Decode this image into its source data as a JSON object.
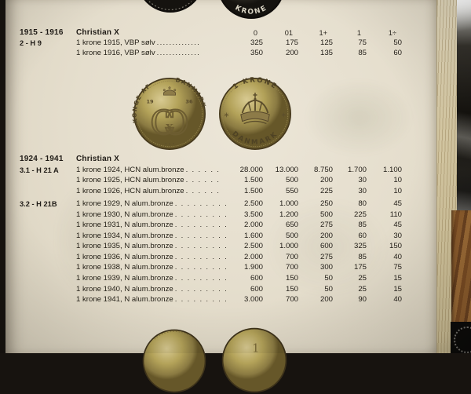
{
  "photo": {
    "background_color": "#17130f",
    "page_color": "#e5decd",
    "coin_gold": "#b3a259",
    "coin_silver": "#56524a",
    "wood_color": "#8d5d2d"
  },
  "page": {
    "sections": [
      {
        "years": "1915 - 1916",
        "ruler": "Christian X",
        "grade_headers": [
          "0",
          "01",
          "1+",
          "1",
          "1÷"
        ],
        "rows": [
          {
            "code": "2 - H 9",
            "label": "1 krone 1915, VBP sølv",
            "dots": "..............",
            "values": [
              "325",
              "175",
              "125",
              "75",
              "50"
            ]
          },
          {
            "code": "",
            "label": "1 krone 1916, VBP sølv",
            "dots": "..............",
            "values": [
              "350",
              "200",
              "135",
              "85",
              "60"
            ]
          }
        ]
      },
      {
        "years": "1924 - 1941",
        "ruler": "Christian X",
        "grade_headers": [],
        "rows": [
          {
            "code": "3.1 - H 21 A",
            "label": "1 krone 1924, HCN alum.bronze",
            "dots": ". . . . . .",
            "values": [
              "28.000",
              "13.000",
              "8.750",
              "1.700",
              "1.100"
            ]
          },
          {
            "code": "",
            "label": "1 krone 1925, HCN alum.bronze",
            "dots": ". . . . . .",
            "values": [
              "1.500",
              "500",
              "200",
              "30",
              "10"
            ]
          },
          {
            "code": "",
            "label": "1 krone 1926, HCN alum.bronze",
            "dots": ". . . . . .",
            "values": [
              "1.500",
              "550",
              "225",
              "30",
              "10"
            ]
          },
          {
            "code": "3.2 - H 21B",
            "label": "1 krone 1929, N alum.bronze",
            "dots": ". . . . . . . . .",
            "values": [
              "2.500",
              "1.000",
              "250",
              "80",
              "45"
            ]
          },
          {
            "code": "",
            "label": "1 krone 1930, N alum.bronze",
            "dots": ". . . . . . . . .",
            "values": [
              "3.500",
              "1.200",
              "500",
              "225",
              "110"
            ]
          },
          {
            "code": "",
            "label": "1 krone 1931, N alum.bronze",
            "dots": ". . . . . . . . .",
            "values": [
              "2.000",
              "650",
              "275",
              "85",
              "45"
            ]
          },
          {
            "code": "",
            "label": "1 krone 1934, N alum.bronze",
            "dots": ". . . . . . . . .",
            "values": [
              "1.600",
              "500",
              "200",
              "60",
              "30"
            ]
          },
          {
            "code": "",
            "label": "1 krone 1935, N alum.bronze",
            "dots": ". . . . . . . . .",
            "values": [
              "2.500",
              "1.000",
              "600",
              "325",
              "150"
            ]
          },
          {
            "code": "",
            "label": "1 krone 1936, N alum.bronze",
            "dots": ". . . . . . . . .",
            "values": [
              "2.000",
              "700",
              "275",
              "85",
              "40"
            ]
          },
          {
            "code": "",
            "label": "1 krone 1938, N alum.bronze",
            "dots": ". . . . . . . . .",
            "values": [
              "1.900",
              "700",
              "300",
              "175",
              "75"
            ]
          },
          {
            "code": "",
            "label": "1 krone 1939, N alum.bronze",
            "dots": ". . . . . . . . .",
            "values": [
              "600",
              "150",
              "50",
              "25",
              "15"
            ]
          },
          {
            "code": "",
            "label": "1 krone 1940, N alum.bronze",
            "dots": ". . . . . . . . .",
            "values": [
              "600",
              "150",
              "50",
              "25",
              "15"
            ]
          },
          {
            "code": "",
            "label": "1 krone 1941, N alum.bronze",
            "dots": ". . . . . . . . .",
            "values": [
              "3.000",
              "700",
              "200",
              "90",
              "40"
            ]
          }
        ]
      }
    ],
    "coin_obverse": {
      "legend_left": "·KONGE AF",
      "legend_right": "DANMARK·",
      "year_left": "19",
      "year_right": "36",
      "monogram_c": "C",
      "monogram_x": "X"
    },
    "coin_reverse": {
      "legend_top": "1 KRONE",
      "legend_bottom": "DANMARK",
      "rosette": "*"
    },
    "partial_coins": {
      "top_right_text": "KRONE",
      "bottom_right_text": "1"
    }
  }
}
